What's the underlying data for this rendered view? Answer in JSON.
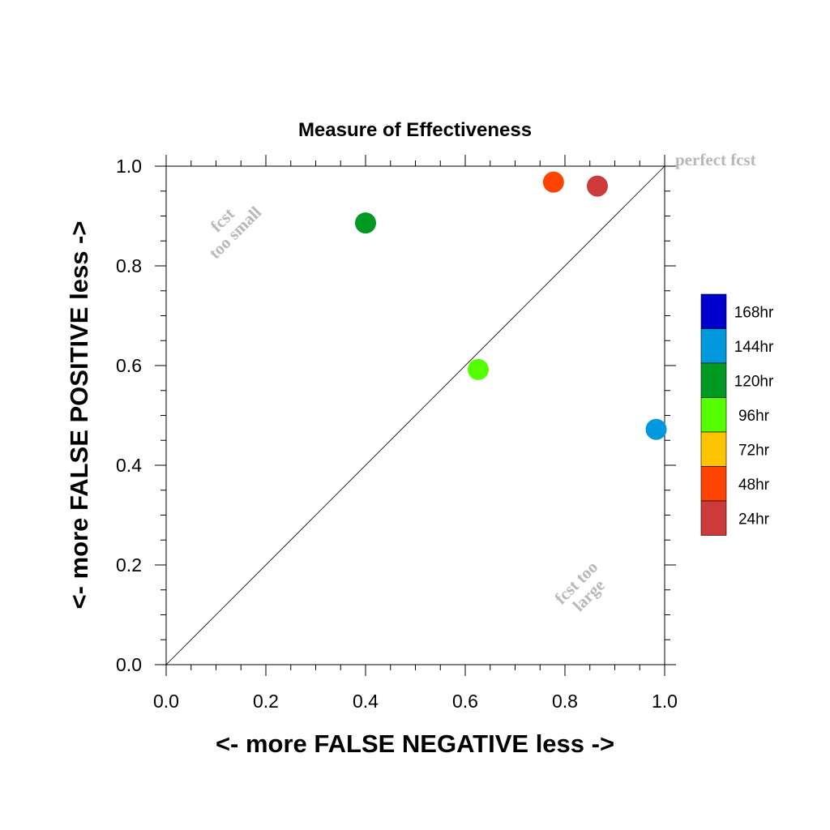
{
  "chart_data": {
    "type": "scatter",
    "title": "Measure of Effectiveness",
    "xlabel": "<- more   FALSE NEGATIVE   less ->",
    "ylabel": "<- more   FALSE POSITIVE   less ->",
    "xlim": [
      0.0,
      1.0
    ],
    "ylim": [
      0.0,
      1.0
    ],
    "x_ticks": [
      "0.0",
      "0.2",
      "0.4",
      "0.6",
      "0.8",
      "1.0"
    ],
    "y_ticks": [
      "0.0",
      "0.2",
      "0.4",
      "0.6",
      "0.8",
      "1.0"
    ],
    "grid": false,
    "diagonal_reference_line": true,
    "annotations": {
      "perfect": "perfect fcst",
      "too_small_1": "fcst",
      "too_small_2": "too small",
      "too_large_1": "fcst too",
      "too_large_2": "large"
    },
    "legend": {
      "placement": "right",
      "entries": [
        {
          "label": "168hr",
          "color": "#0000cc"
        },
        {
          "label": "144hr",
          "color": "#0099dd"
        },
        {
          "label": "120hr",
          "color": "#009922"
        },
        {
          "label": "96hr",
          "color": "#55ff00"
        },
        {
          "label": "72hr",
          "color": "#ffc400"
        },
        {
          "label": "48hr",
          "color": "#ff4400"
        },
        {
          "label": "24hr",
          "color": "#cc3a3a"
        }
      ]
    },
    "points": [
      {
        "lead": "24hr",
        "x": 0.865,
        "y": 0.96,
        "color": "#cc3a3a"
      },
      {
        "lead": "48hr",
        "x": 0.777,
        "y": 0.968,
        "color": "#ff4400"
      },
      {
        "lead": "96hr",
        "x": 0.626,
        "y": 0.592,
        "color": "#55ff00"
      },
      {
        "lead": "120hr",
        "x": 0.4,
        "y": 0.886,
        "color": "#009922"
      },
      {
        "lead": "144hr",
        "x": 0.983,
        "y": 0.472,
        "color": "#0099dd"
      }
    ]
  }
}
